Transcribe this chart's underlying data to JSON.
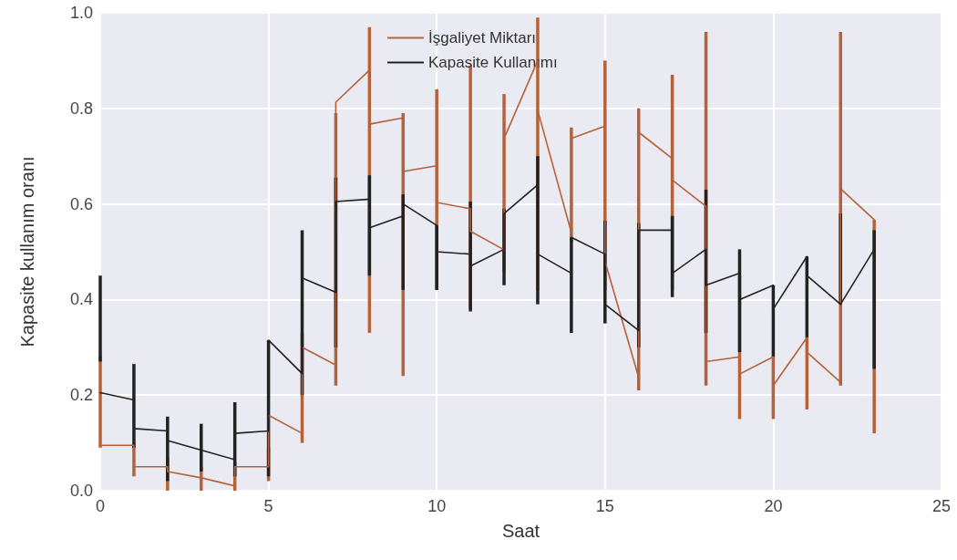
{
  "chart_data": {
    "type": "line",
    "xlabel": "Saat",
    "ylabel": "Kapasite kullanım oranı",
    "legend": "top",
    "grid": true,
    "marker": "none",
    "line_style": "solid",
    "xlim": [
      0,
      25
    ],
    "xticks": [
      0,
      5,
      10,
      15,
      20,
      25
    ],
    "ylim": [
      0,
      1
    ],
    "yticks": [
      {
        "value": 0,
        "label": "0.0"
      },
      0.2,
      0.4,
      0.6,
      0.8,
      {
        "value": 1,
        "label": "1.0"
      }
    ],
    "series": [
      {
        "name": "İşgaliyet Miktarı",
        "color": "#b5623a",
        "x": [
          0,
          1,
          1,
          2,
          2,
          3,
          3,
          4,
          4,
          5,
          5,
          6,
          6,
          7,
          7,
          8,
          8,
          9,
          9,
          10,
          10,
          11,
          11,
          12,
          12,
          13,
          13,
          14,
          14,
          15,
          15,
          16,
          16,
          17,
          17,
          18,
          18,
          19,
          19,
          20,
          20,
          21,
          21,
          22,
          22,
          23
        ],
        "values": [
          0.095,
          0.095,
          0.05,
          0.05,
          0.04,
          0.027,
          0.027,
          0.01,
          0.05,
          0.05,
          0.158,
          0.12,
          0.3,
          0.263,
          0.813,
          0.88,
          0.767,
          0.78,
          0.668,
          0.68,
          0.603,
          0.59,
          0.543,
          0.504,
          0.737,
          0.9,
          0.796,
          0.54,
          0.737,
          0.763,
          0.48,
          0.237,
          0.75,
          0.695,
          0.65,
          0.595,
          0.27,
          0.28,
          0.244,
          0.28,
          0.22,
          0.32,
          0.29,
          0.227,
          0.632,
          0.567
        ],
        "errors": [
          [
            0.09,
            0.28
          ],
          [
            0.03,
            0.1
          ],
          null,
          [
            0,
            0.07
          ],
          null,
          [
            0,
            0.05
          ],
          null,
          [
            0,
            0.06
          ],
          null,
          [
            0.02,
            0.09
          ],
          null,
          [
            0.1,
            0.33
          ],
          null,
          [
            0.22,
            0.79
          ],
          null,
          [
            0.33,
            0.97
          ],
          null,
          [
            0.24,
            0.79
          ],
          null,
          [
            0.42,
            0.84
          ],
          null,
          [
            0.38,
            0.89
          ],
          null,
          [
            0.46,
            0.83
          ],
          null,
          [
            0.42,
            0.99
          ],
          null,
          [
            0.52,
            0.76
          ],
          null,
          [
            0.42,
            0.9
          ],
          null,
          [
            0.21,
            0.8
          ],
          null,
          [
            0.42,
            0.87
          ],
          null,
          [
            0.22,
            0.96
          ],
          null,
          [
            0.15,
            0.45
          ],
          null,
          [
            0.15,
            0.28
          ],
          null,
          [
            0.17,
            0.32
          ],
          null,
          [
            0.22,
            0.96
          ],
          null,
          [
            0.12,
            0.567
          ]
        ]
      },
      {
        "name": "Kapasite Kullanımı",
        "color": "#222222",
        "x": [
          0,
          1,
          1,
          2,
          2,
          3,
          3,
          4,
          4,
          5,
          5,
          6,
          6,
          7,
          7,
          8,
          8,
          9,
          9,
          10,
          10,
          11,
          11,
          12,
          12,
          13,
          13,
          14,
          14,
          15,
          15,
          16,
          16,
          17,
          17,
          18,
          18,
          19,
          19,
          20,
          20,
          21,
          21,
          22,
          22,
          23
        ],
        "values": [
          0.205,
          0.19,
          0.13,
          0.125,
          0.105,
          0.085,
          0.085,
          0.065,
          0.12,
          0.125,
          0.315,
          0.245,
          0.445,
          0.415,
          0.605,
          0.61,
          0.55,
          0.575,
          0.6,
          0.555,
          0.5,
          0.495,
          0.47,
          0.505,
          0.58,
          0.64,
          0.495,
          0.455,
          0.53,
          0.495,
          0.39,
          0.335,
          0.545,
          0.545,
          0.455,
          0.505,
          0.43,
          0.455,
          0.4,
          0.43,
          0.38,
          0.49,
          0.45,
          0.39,
          0.39,
          0.505
        ],
        "errors": [
          [
            0.27,
            0.45
          ],
          [
            0.09,
            0.265
          ],
          null,
          [
            0.02,
            0.155
          ],
          null,
          [
            0.04,
            0.14
          ],
          null,
          [
            0.03,
            0.185
          ],
          null,
          [
            0.03,
            0.315
          ],
          null,
          [
            0.2,
            0.545
          ],
          null,
          [
            0.3,
            0.655
          ],
          null,
          [
            0.45,
            0.66
          ],
          null,
          [
            0.42,
            0.62
          ],
          null,
          [
            0.42,
            0.555
          ],
          null,
          [
            0.375,
            0.605
          ],
          null,
          [
            0.43,
            0.59
          ],
          null,
          [
            0.39,
            0.7
          ],
          null,
          [
            0.33,
            0.53
          ],
          null,
          [
            0.35,
            0.565
          ],
          null,
          [
            0.3,
            0.56
          ],
          null,
          [
            0.405,
            0.575
          ],
          null,
          [
            0.33,
            0.63
          ],
          null,
          [
            0.29,
            0.505
          ],
          null,
          [
            0.28,
            0.43
          ],
          null,
          [
            0.32,
            0.49
          ],
          null,
          [
            0.39,
            0.58
          ],
          null,
          [
            0.255,
            0.545
          ]
        ]
      }
    ]
  }
}
